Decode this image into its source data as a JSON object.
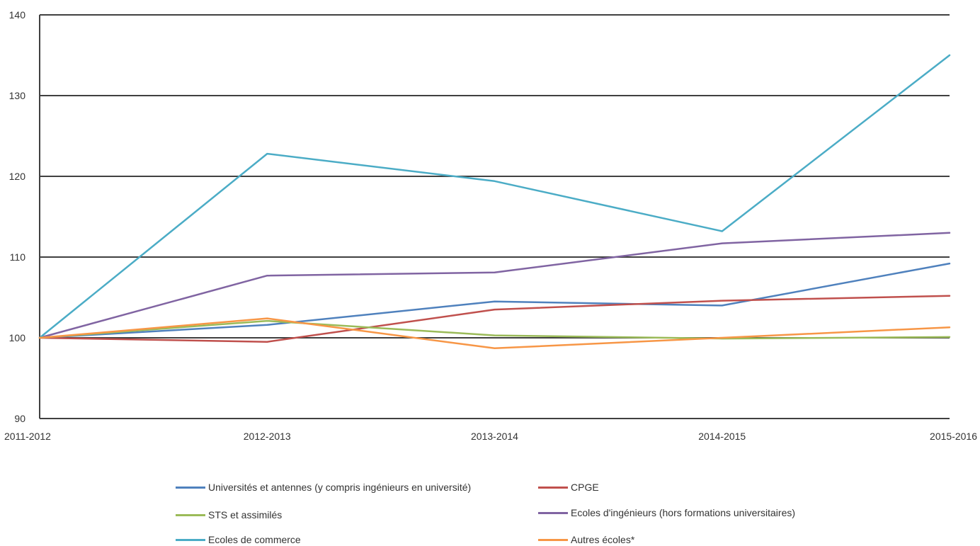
{
  "chart_data": {
    "type": "line",
    "title": "",
    "xlabel": "",
    "ylabel": "",
    "ylim": [
      90,
      140
    ],
    "yticks": [
      90,
      100,
      110,
      120,
      130,
      140
    ],
    "categories": [
      "2011-2012",
      "2012-2013",
      "2013-2014",
      "2014-2015",
      "2015-2016"
    ],
    "grid": true,
    "legend_position": "bottom",
    "series": [
      {
        "name": "Universités et antennes (y compris ingénieurs en université)",
        "color": "#4f81bd",
        "values": [
          100,
          101.6,
          104.5,
          104.0,
          109.2
        ]
      },
      {
        "name": "CPGE",
        "color": "#c0504d",
        "values": [
          100,
          99.5,
          103.5,
          104.6,
          105.2
        ]
      },
      {
        "name": "STS et assimilés",
        "color": "#9bbb59",
        "values": [
          100,
          102.1,
          100.3,
          99.9,
          100.1
        ]
      },
      {
        "name": "Ecoles d'ingénieurs (hors formations universitaires)",
        "color": "#8064a2",
        "values": [
          100,
          107.7,
          108.1,
          111.7,
          113.0
        ]
      },
      {
        "name": "Ecoles de commerce",
        "color": "#4bacc6",
        "values": [
          100,
          122.8,
          119.4,
          113.2,
          135.0
        ]
      },
      {
        "name": "Autres écoles*",
        "color": "#f79646",
        "values": [
          100,
          102.4,
          98.7,
          100.0,
          101.3
        ]
      }
    ]
  }
}
